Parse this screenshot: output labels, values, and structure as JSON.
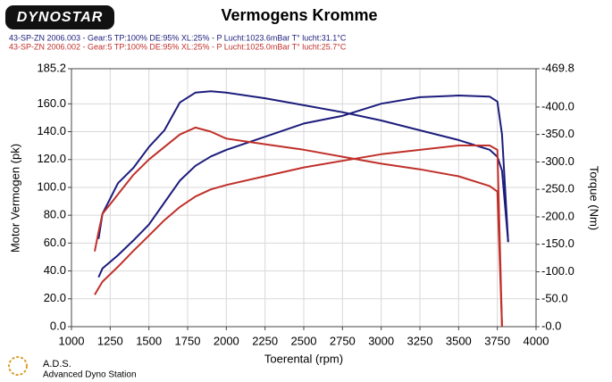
{
  "logo": "DYNOSTAR",
  "footer": {
    "title": "A.D.S.",
    "subtitle": "Advanced Dyno Station"
  },
  "chart_data": {
    "type": "line",
    "title": "Vermogens Kromme",
    "xlabel": "Toerental (rpm)",
    "ylabel": "Motor Vermogen (pk)",
    "y2label": "Torque (Nm)",
    "grid": true,
    "x": [
      1150,
      1175,
      1200,
      1300,
      1400,
      1500,
      1600,
      1700,
      1800,
      1900,
      2000,
      2250,
      2500,
      2750,
      3000,
      3250,
      3500,
      3700,
      3750,
      3780,
      3820
    ],
    "series": [
      {
        "name": "43-SP-ZN 2006.003 - Gear:5 TP:100% DE:95% XL:25%  - P Lucht:1023.6mBar T° lucht:31.1°C",
        "color": "#1c1c7c",
        "values": [
          null,
          63,
          81,
          103,
          114,
          129,
          141,
          161,
          168,
          169,
          168,
          164,
          159,
          154,
          148,
          141,
          134,
          127,
          122,
          112,
          61
        ]
      },
      {
        "color": "#1c1c7c",
        "axis": "y2",
        "values": [
          null,
          -90,
          -106,
          -130,
          -157,
          -186,
          -226,
          -266,
          -293,
          -310,
          -322,
          -346,
          -370,
          -384,
          -406,
          -418,
          -421,
          -419,
          -410,
          -350,
          -154
        ]
      },
      {
        "name": "43-SP-ZN 2006.002 - Gear:5 TP:100% DE:95% XL:25%  - P Lucht:1025.0mBar T° lucht:25.7°C",
        "color": "#c0302a",
        "values": [
          54,
          68,
          81,
          95,
          109,
          120,
          129,
          138,
          143,
          140,
          135,
          131,
          127,
          122,
          117,
          113,
          108,
          101,
          97,
          0,
          null
        ]
      },
      {
        "color": "#c0302a",
        "axis": "y2",
        "values": [
          -58,
          -70,
          -82,
          -109,
          -138,
          -166,
          -194,
          -218,
          -237,
          -250,
          -258,
          -274,
          -290,
          -302,
          -314,
          -322,
          -330,
          -330,
          -322,
          0,
          null
        ]
      }
    ],
    "xlim": [
      1000,
      4000
    ],
    "xticks": [
      1000,
      1250,
      1500,
      1750,
      2000,
      2250,
      2500,
      2750,
      3000,
      3250,
      3500,
      3750,
      4000
    ],
    "ylim": [
      0,
      185.2
    ],
    "yticks": [
      {
        "value": 0,
        "label": "0.0"
      },
      {
        "value": 20,
        "label": "20.0"
      },
      {
        "value": 40,
        "label": "40.0"
      },
      {
        "value": 60,
        "label": "60.0"
      },
      {
        "value": 80,
        "label": "80.0"
      },
      {
        "value": 100,
        "label": "100.0"
      },
      {
        "value": 120,
        "label": "120.0"
      },
      {
        "value": 140,
        "label": "140.0"
      },
      {
        "value": 160,
        "label": "160.0"
      },
      185.2
    ],
    "y2lim": [
      0,
      -469.8
    ],
    "y2ticks": [
      {
        "value": 0,
        "label": "-0.0"
      },
      {
        "value": -50,
        "label": "-50.0"
      },
      {
        "value": -100,
        "label": "-100.0"
      },
      {
        "value": -150,
        "label": "-150.0"
      },
      {
        "value": -200,
        "label": "-200.0"
      },
      {
        "value": -250,
        "label": "-250.0"
      },
      {
        "value": -300,
        "label": "-300.0"
      },
      {
        "value": -350,
        "label": "-350.0"
      },
      {
        "value": -400,
        "label": "-400.0"
      },
      -469.8
    ]
  }
}
